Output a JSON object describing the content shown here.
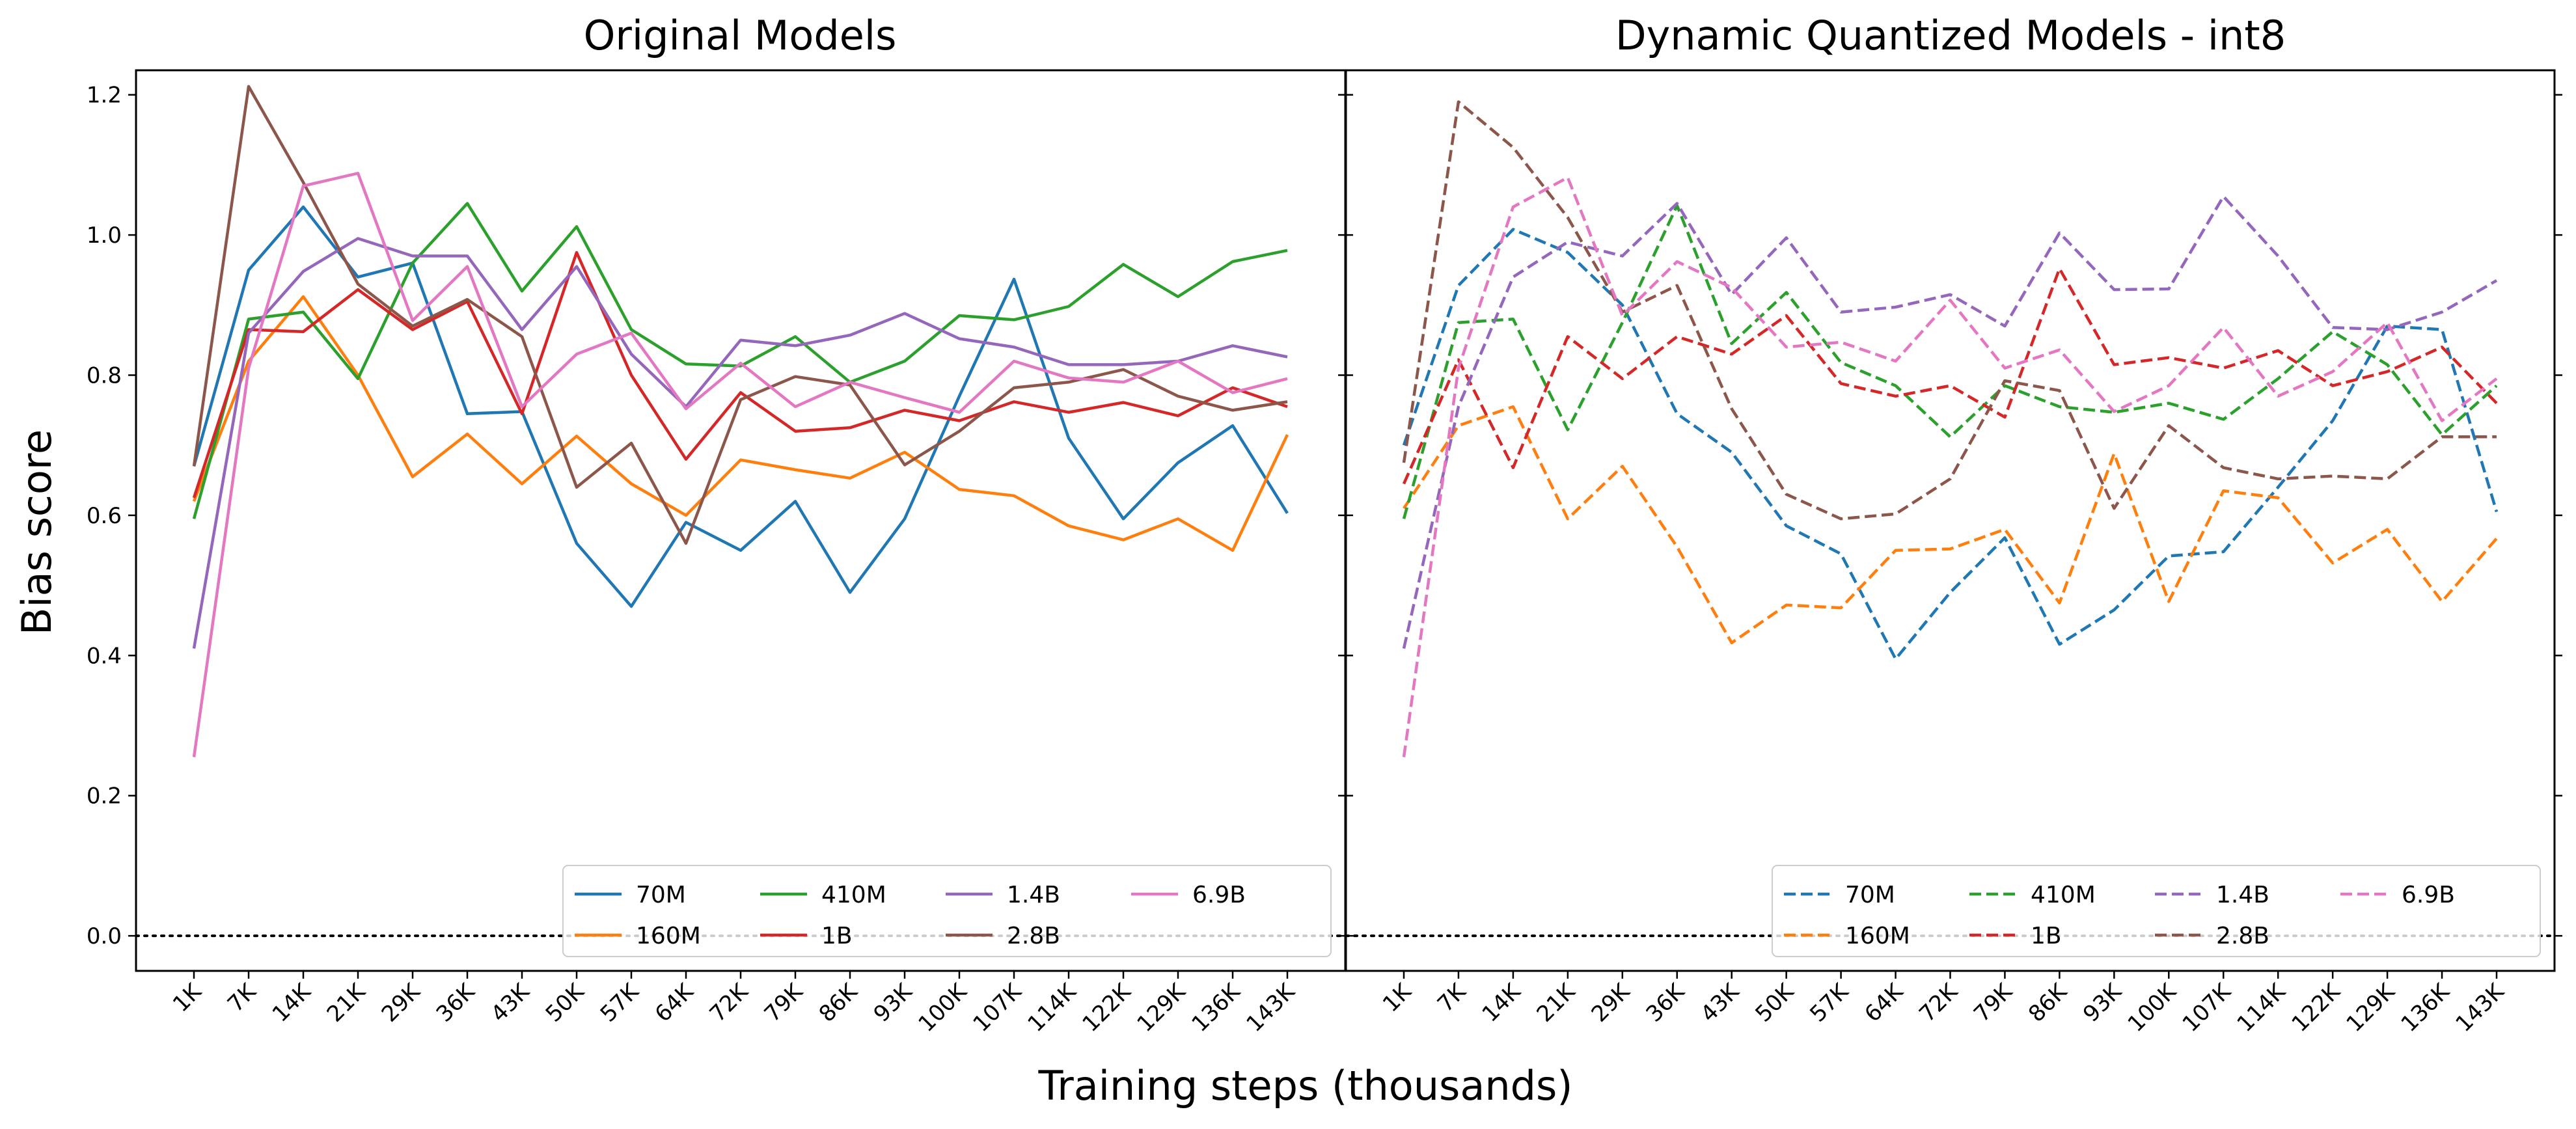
{
  "chart_data": {
    "type": "line",
    "xlabel": "Training steps (thousands)",
    "ylabel": "Bias score",
    "ylim": [
      -0.05,
      1.235
    ],
    "yticks": [
      "0.0",
      "0.2",
      "0.4",
      "0.6",
      "0.8",
      "1.0",
      "1.2"
    ],
    "categories": [
      "1K",
      "7K",
      "14K",
      "21K",
      "29K",
      "36K",
      "43K",
      "50K",
      "57K",
      "64K",
      "72K",
      "79K",
      "86K",
      "93K",
      "100K",
      "107K",
      "114K",
      "122K",
      "129K",
      "136K",
      "143K"
    ],
    "reference_line": 0.0,
    "legend_position": "lower-right",
    "colors": {
      "70M": "#1f77b4",
      "160M": "#ff7f0e",
      "410M": "#2ca02c",
      "1B": "#d62728",
      "1.4B": "#9467bd",
      "2.8B": "#8c564b",
      "6.9B": "#e377c2"
    },
    "panels": [
      {
        "title": "Original Models",
        "line_style": "solid",
        "series": [
          {
            "name": "70M",
            "values": [
              0.67,
              0.95,
              1.04,
              0.94,
              0.96,
              0.745,
              0.748,
              0.56,
              0.47,
              0.59,
              0.55,
              0.62,
              0.49,
              0.595,
              0.77,
              0.937,
              0.71,
              0.595,
              0.675,
              0.728,
              0.603
            ]
          },
          {
            "name": "160M",
            "values": [
              0.62,
              0.82,
              0.912,
              0.8,
              0.655,
              0.716,
              0.645,
              0.713,
              0.645,
              0.6,
              0.679,
              0.665,
              0.653,
              0.69,
              0.637,
              0.628,
              0.585,
              0.565,
              0.595,
              0.55,
              0.715
            ]
          },
          {
            "name": "410M",
            "values": [
              0.595,
              0.88,
              0.89,
              0.795,
              0.96,
              1.045,
              0.92,
              1.012,
              0.865,
              0.816,
              0.813,
              0.855,
              0.79,
              0.82,
              0.885,
              0.879,
              0.898,
              0.958,
              0.912,
              0.962,
              0.978
            ]
          },
          {
            "name": "1B",
            "values": [
              0.625,
              0.865,
              0.862,
              0.922,
              0.865,
              0.905,
              0.745,
              0.975,
              0.8,
              0.68,
              0.775,
              0.72,
              0.725,
              0.75,
              0.735,
              0.762,
              0.747,
              0.761,
              0.742,
              0.782,
              0.755
            ]
          },
          {
            "name": "1.4B",
            "values": [
              0.41,
              0.86,
              0.948,
              0.995,
              0.97,
              0.97,
              0.865,
              0.955,
              0.83,
              0.755,
              0.85,
              0.842,
              0.857,
              0.888,
              0.852,
              0.84,
              0.815,
              0.815,
              0.82,
              0.842,
              0.826
            ]
          },
          {
            "name": "2.8B",
            "values": [
              0.67,
              1.212,
              1.075,
              0.93,
              0.87,
              0.908,
              0.855,
              0.64,
              0.703,
              0.56,
              0.765,
              0.798,
              0.786,
              0.672,
              0.72,
              0.782,
              0.79,
              0.808,
              0.77,
              0.75,
              0.762
            ]
          },
          {
            "name": "6.9B",
            "values": [
              0.255,
              0.81,
              1.07,
              1.088,
              0.878,
              0.955,
              0.755,
              0.83,
              0.86,
              0.752,
              0.817,
              0.755,
              0.79,
              0.768,
              0.747,
              0.82,
              0.796,
              0.79,
              0.82,
              0.775,
              0.795
            ]
          }
        ]
      },
      {
        "title": "Dynamic Quantized Models - int8",
        "line_style": "dashed",
        "series": [
          {
            "name": "70M",
            "values": [
              0.7,
              0.928,
              1.008,
              0.975,
              0.9,
              0.745,
              0.69,
              0.585,
              0.545,
              0.395,
              0.49,
              0.568,
              0.416,
              0.465,
              0.542,
              0.548,
              0.64,
              0.735,
              0.87,
              0.865,
              0.605
            ]
          },
          {
            "name": "160M",
            "values": [
              0.61,
              0.728,
              0.755,
              0.595,
              0.67,
              0.555,
              0.418,
              0.472,
              0.468,
              0.55,
              0.552,
              0.58,
              0.475,
              0.688,
              0.477,
              0.635,
              0.625,
              0.532,
              0.58,
              0.477,
              0.567
            ]
          },
          {
            "name": "410M",
            "values": [
              0.595,
              0.875,
              0.88,
              0.722,
              0.875,
              1.042,
              0.845,
              0.918,
              0.818,
              0.785,
              0.712,
              0.785,
              0.755,
              0.747,
              0.76,
              0.737,
              0.795,
              0.862,
              0.815,
              0.715,
              0.785
            ]
          },
          {
            "name": "1B",
            "values": [
              0.645,
              0.822,
              0.668,
              0.855,
              0.795,
              0.855,
              0.83,
              0.885,
              0.788,
              0.77,
              0.785,
              0.74,
              0.952,
              0.815,
              0.825,
              0.81,
              0.835,
              0.785,
              0.805,
              0.84,
              0.76
            ]
          },
          {
            "name": "1.4B",
            "values": [
              0.41,
              0.755,
              0.94,
              0.99,
              0.97,
              1.045,
              0.915,
              0.996,
              0.89,
              0.897,
              0.915,
              0.87,
              1.003,
              0.922,
              0.923,
              1.055,
              0.97,
              0.868,
              0.865,
              0.89,
              0.935
            ]
          },
          {
            "name": "2.8B",
            "values": [
              0.675,
              1.19,
              1.125,
              1.025,
              0.89,
              0.928,
              0.752,
              0.63,
              0.595,
              0.602,
              0.652,
              0.792,
              0.778,
              0.61,
              0.728,
              0.668,
              0.652,
              0.656,
              0.652,
              0.712,
              0.712
            ]
          },
          {
            "name": "6.9B",
            "values": [
              0.255,
              0.81,
              1.04,
              1.082,
              0.885,
              0.962,
              0.925,
              0.84,
              0.847,
              0.82,
              0.907,
              0.81,
              0.836,
              0.748,
              0.785,
              0.868,
              0.77,
              0.805,
              0.875,
              0.735,
              0.795
            ]
          }
        ]
      }
    ]
  }
}
